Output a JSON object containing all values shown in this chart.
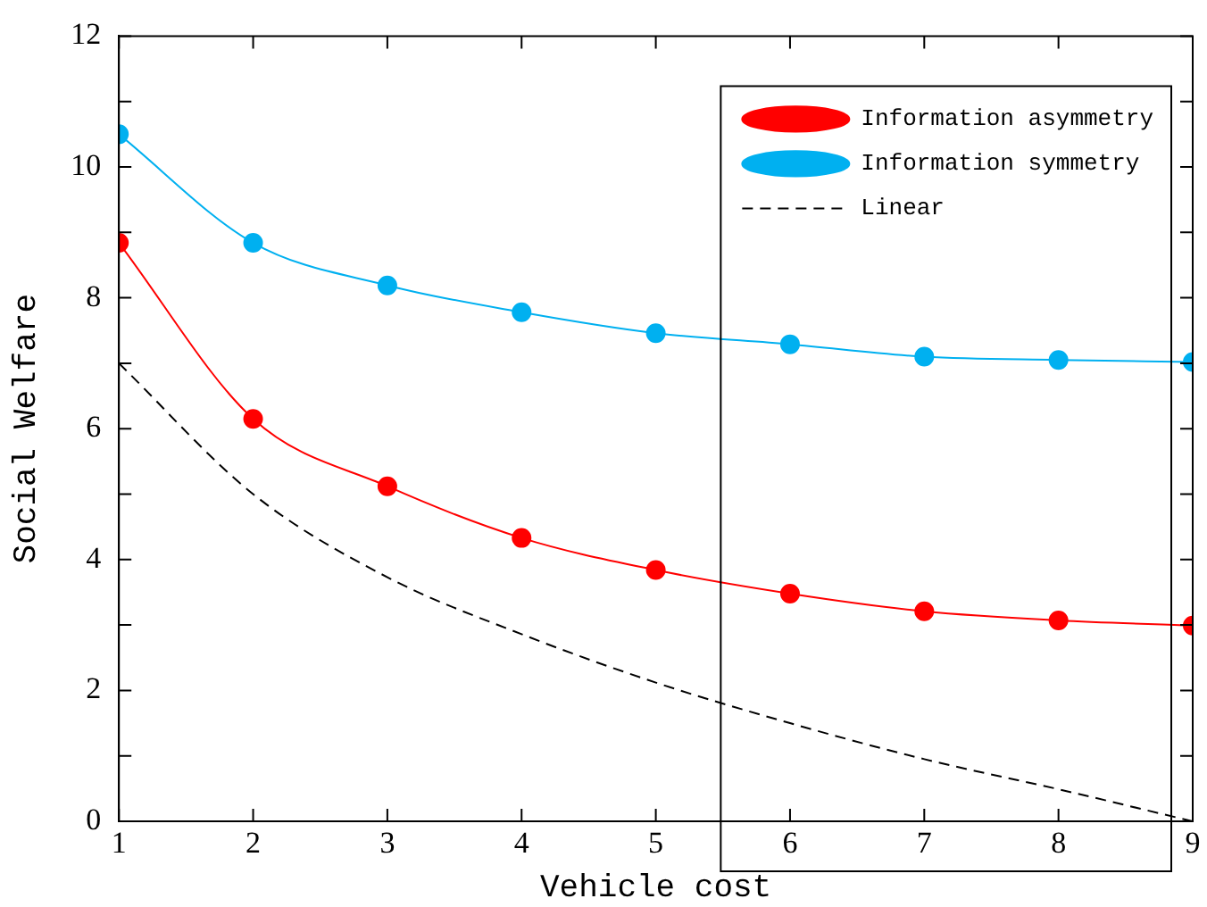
{
  "chart_data": {
    "type": "line",
    "xlabel": "Vehicle cost",
    "ylabel": "Social Welfare",
    "x": [
      1,
      2,
      3,
      4,
      5,
      6,
      7,
      8,
      9
    ],
    "series": [
      {
        "name": "Information asymmetry",
        "color": "#ff0000",
        "marker": "circle",
        "line_style": "solid",
        "values": [
          8.84,
          6.15,
          5.12,
          4.33,
          3.84,
          3.48,
          3.21,
          3.07,
          2.99
        ]
      },
      {
        "name": "Information symmetry",
        "color": "#00b0f0",
        "marker": "circle",
        "line_style": "solid",
        "values": [
          10.5,
          8.84,
          8.19,
          7.78,
          7.46,
          7.29,
          7.1,
          7.05,
          7.02
        ]
      },
      {
        "name": "Linear",
        "color": "#000000",
        "marker": "none",
        "line_style": "dashed",
        "values": [
          7.0,
          5.0,
          3.73,
          2.86,
          2.12,
          1.5,
          0.95,
          0.49,
          0
        ]
      }
    ],
    "xlim": [
      1,
      9
    ],
    "xticks": [
      1,
      2,
      3,
      4,
      5,
      6,
      7,
      8,
      9
    ],
    "ylim": [
      0,
      12
    ],
    "yticks": [
      0,
      {
        "value": 1,
        "label": null
      },
      2,
      {
        "value": 3,
        "label": null
      },
      4,
      {
        "value": 5,
        "label": null
      },
      6,
      {
        "value": 7,
        "label": null
      },
      8,
      {
        "value": 9,
        "label": null
      },
      10,
      {
        "value": 11,
        "label": null
      },
      12
    ],
    "grid": false,
    "legend": "top right"
  }
}
